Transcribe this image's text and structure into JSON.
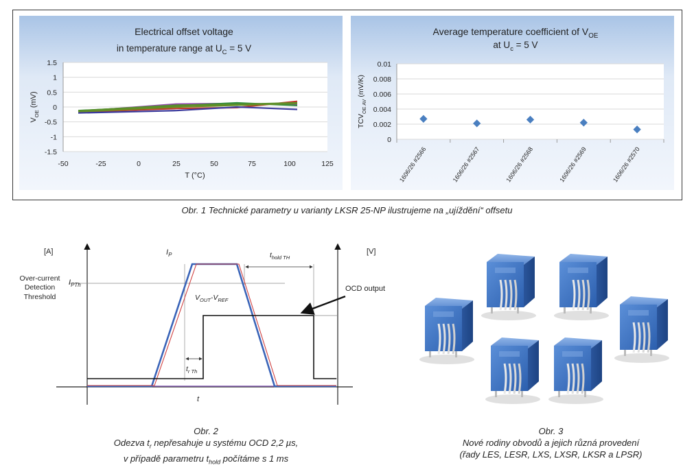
{
  "chart_data": [
    {
      "type": "line",
      "title": "Electrical offset voltage",
      "subtitle": "in temperature range at U_C = 5 V",
      "xlabel": "T (°C)",
      "ylabel": "V_OE (mV)",
      "xlim": [
        -50,
        125
      ],
      "ylim": [
        -1.5,
        1.5
      ],
      "x_ticks": [
        "-50",
        "-25",
        "0",
        "25",
        "50",
        "75",
        "100",
        "125"
      ],
      "y_ticks": [
        "1.5",
        "1",
        "0.5",
        "0",
        "-0.5",
        "-1",
        "-1.5"
      ],
      "x": [
        -40,
        25,
        65,
        105
      ],
      "series": [
        {
          "values": [
            -0.17,
            -0.05,
            -0.02,
            0.19
          ],
          "color": "#c0392b"
        },
        {
          "values": [
            -0.15,
            0.1,
            0.12,
            0.08
          ],
          "color": "#8e44ad"
        },
        {
          "values": [
            -0.12,
            0.04,
            0.14,
            0.05
          ],
          "color": "#2e8b3a"
        },
        {
          "values": [
            -0.16,
            0.0,
            0.06,
            0.12
          ],
          "color": "#6b8e23"
        },
        {
          "values": [
            -0.2,
            -0.12,
            0.0,
            -0.08
          ],
          "color": "#3b3b9e"
        },
        {
          "values": [
            -0.13,
            0.06,
            0.09,
            0.14
          ],
          "color": "#5a8f2a"
        }
      ],
      "grid": true,
      "legend": "none"
    },
    {
      "type": "scatter",
      "title": "Average temperature coefficient of V_OE",
      "subtitle": "at U_c = 5 V",
      "ylabel": "TCV_OE AV (mV/K)",
      "categories": [
        "1606/26 #2566",
        "1606/26 #2567",
        "1606/26 #2568",
        "1606/26 #2569",
        "1606/26 #2570"
      ],
      "values": [
        0.0027,
        0.0021,
        0.0026,
        0.0022,
        0.0013
      ],
      "y_ticks": [
        "0.01",
        "0.008",
        "0.006",
        "0.004",
        "0.002",
        "0"
      ],
      "ylim": [
        0,
        0.01
      ],
      "marker_color": "#4a7fc0",
      "grid": true,
      "legend": "none"
    }
  ],
  "fig1": {
    "caption": "Obr. 1  Technické parametry u varianty LKSR 25-NP ilustrujeme na „ujíždění“ offsetu"
  },
  "fig2": {
    "left_unit": "[A]",
    "right_unit": "[V]",
    "threshold_label_1": "Over-current",
    "threshold_label_2": "Detection",
    "threshold_label_3": "Threshold",
    "ip": "I",
    "ip_sub": "P",
    "ipth": "I",
    "ipth_sub": "PTh",
    "vout": "V",
    "vout_sub1": "OUT",
    "vout_mid": "-V",
    "vout_sub2": "REF",
    "thold": "t",
    "thold_sub": "hold TH",
    "trth": "t",
    "trth_sub": "r Th",
    "t_axis": "t",
    "ocd_output": "OCD output",
    "caption_1": "Obr. 2",
    "caption_2a": "Odezva t",
    "caption_2sub": "r",
    "caption_2b": " nepřesahuje u systému OCD 2,2 µs,",
    "caption_3a": "v případě parametru t",
    "caption_3sub": "hold",
    "caption_3b": " počítáme s 1 ms"
  },
  "fig3": {
    "caption_1": "Obr. 3",
    "caption_2": "Nové rodiny obvodů a jejich různá provedení",
    "caption_3": "(řady LES, LESR, LXS, LXSR, LKSR a LPSR)"
  }
}
